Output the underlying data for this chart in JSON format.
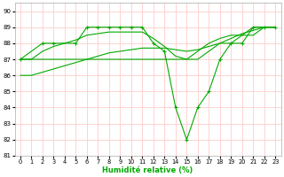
{
  "xlabel": "Humidité relative (%)",
  "xlim": [
    -0.5,
    23.5
  ],
  "ylim": [
    81,
    90.5
  ],
  "yticks": [
    81,
    82,
    83,
    84,
    85,
    86,
    87,
    88,
    89,
    90
  ],
  "xticks": [
    0,
    1,
    2,
    3,
    4,
    5,
    6,
    7,
    8,
    9,
    10,
    11,
    12,
    13,
    14,
    15,
    16,
    17,
    18,
    19,
    20,
    21,
    22,
    23
  ],
  "background_color": "#ffffff",
  "grid_color": "#ffcccc",
  "line_color": "#00aa00",
  "series1_x": [
    0,
    1,
    2,
    3,
    4,
    5,
    6,
    7,
    8,
    9,
    10,
    11,
    12,
    13,
    14,
    15,
    16,
    17,
    18,
    19,
    20,
    21,
    22,
    23
  ],
  "series1_y": [
    87,
    87,
    87,
    87,
    87,
    87,
    87,
    87,
    87,
    87,
    87,
    87,
    87,
    87,
    87,
    87,
    87,
    87.5,
    88,
    88,
    88.5,
    89,
    89,
    89
  ],
  "series2_x": [
    0,
    1,
    2,
    3,
    4,
    5,
    6,
    7,
    8,
    9,
    10,
    11,
    12,
    13,
    14,
    15,
    16,
    17,
    18,
    19,
    20,
    21,
    22,
    23
  ],
  "series2_y": [
    86,
    86,
    86.2,
    86.4,
    86.6,
    86.8,
    87.0,
    87.2,
    87.4,
    87.5,
    87.6,
    87.7,
    87.7,
    87.7,
    87.6,
    87.5,
    87.6,
    87.8,
    88.0,
    88.3,
    88.6,
    88.8,
    89.0,
    89.0
  ],
  "series3_x": [
    0,
    2,
    3,
    5,
    6,
    7,
    8,
    9,
    10,
    11,
    12,
    13,
    14,
    15,
    16,
    17,
    18,
    19,
    20,
    21,
    22,
    23
  ],
  "series3_y": [
    87,
    88,
    88,
    88,
    89,
    89,
    89,
    89,
    89,
    89,
    88,
    87.5,
    84,
    82,
    84,
    85,
    87,
    88,
    88,
    89,
    89,
    89
  ],
  "series4_x": [
    0,
    1,
    2,
    3,
    4,
    5,
    6,
    7,
    8,
    9,
    10,
    11,
    12,
    13,
    14,
    15,
    16,
    17,
    18,
    19,
    20,
    21,
    22,
    23
  ],
  "series4_y": [
    87,
    87,
    87.5,
    87.8,
    88,
    88.2,
    88.5,
    88.6,
    88.7,
    88.7,
    88.7,
    88.7,
    88.3,
    87.8,
    87.2,
    87.0,
    87.5,
    88.0,
    88.3,
    88.5,
    88.5,
    88.5,
    89.0,
    89.0
  ]
}
